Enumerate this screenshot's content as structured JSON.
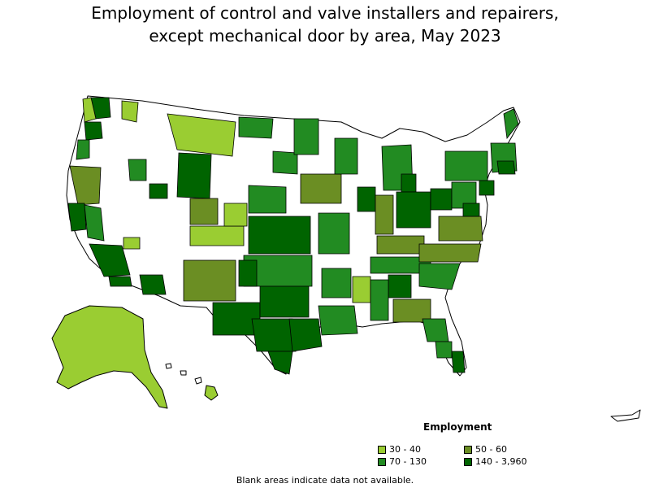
{
  "title": {
    "line1": "Employment of control and valve installers and repairers,",
    "line2": "except mechanical door by area, May 2023"
  },
  "legend": {
    "title": "Employment",
    "items": [
      {
        "label": "30 - 40",
        "color": "#9acd32"
      },
      {
        "label": "50 - 60",
        "color": "#6b8e23"
      },
      {
        "label": "70 - 130",
        "color": "#228b22"
      },
      {
        "label": "140 - 3,960",
        "color": "#006400"
      }
    ]
  },
  "note": "Blank areas indicate data not available.",
  "colors": {
    "no_data": "#ffffff",
    "border": "#000000"
  }
}
